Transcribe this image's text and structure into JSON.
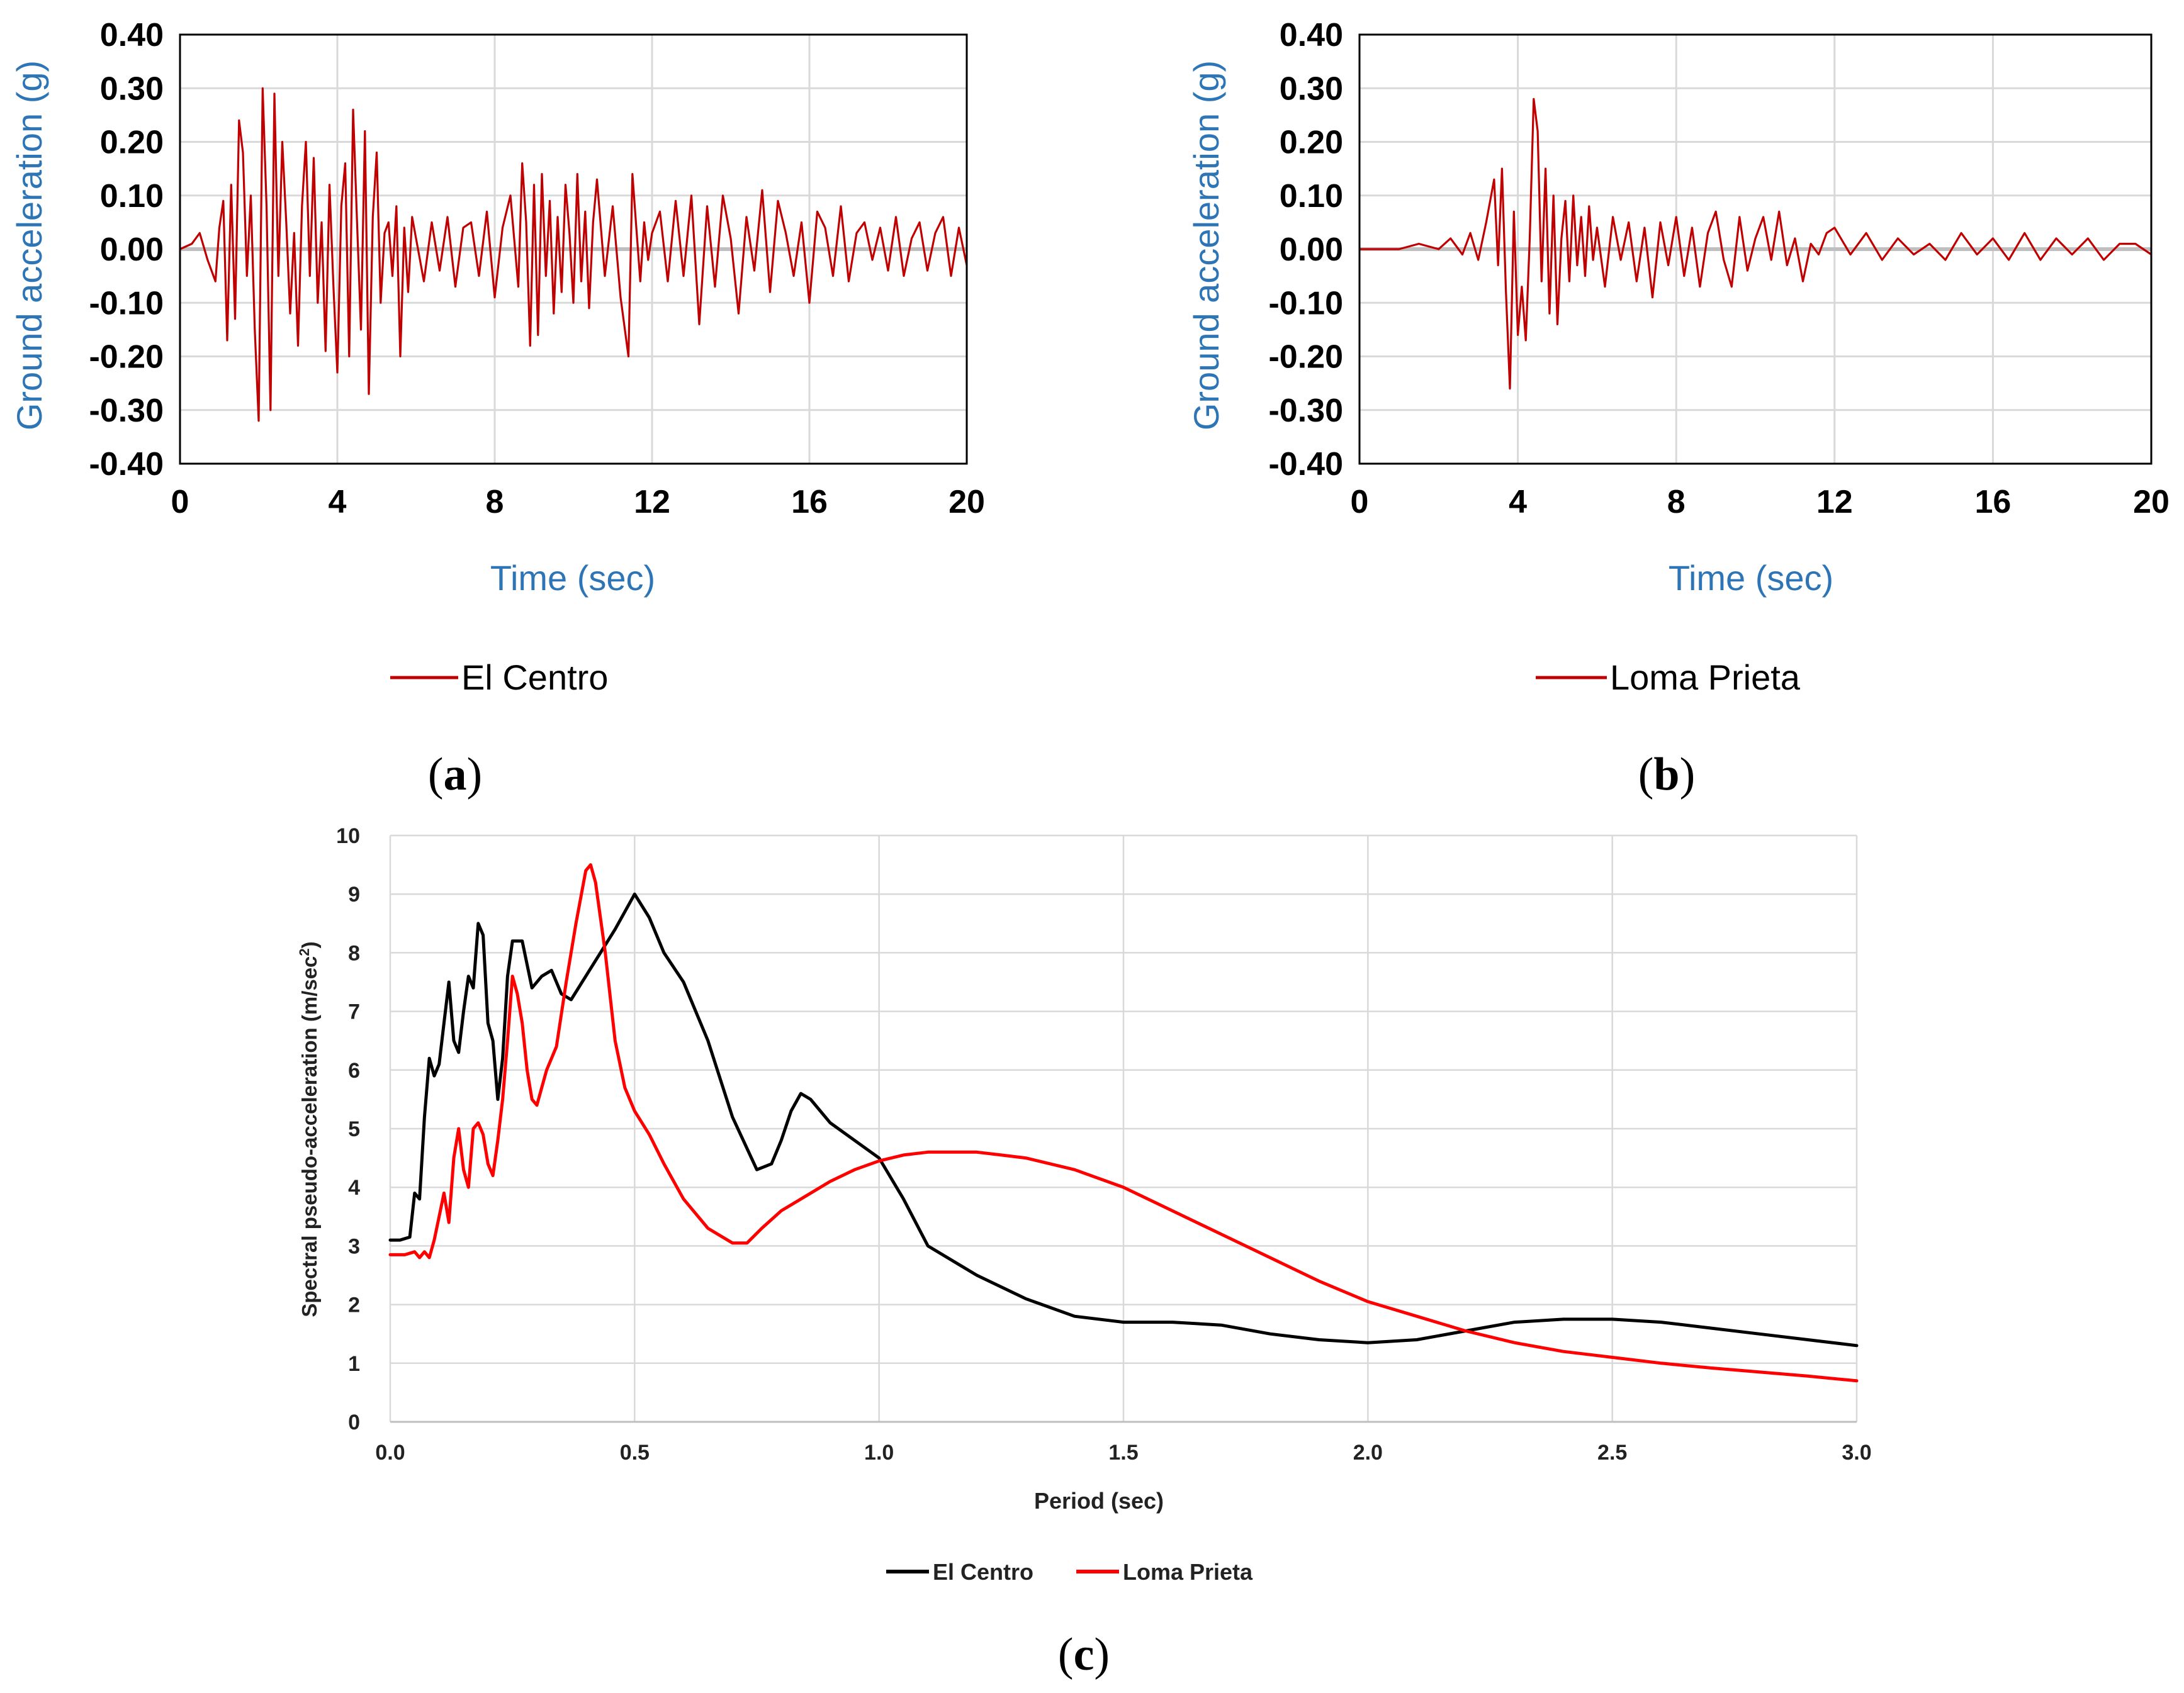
{
  "chart_data": [
    {
      "type": "line",
      "panel": "a",
      "panel_label_text": "a",
      "xlabel": "Time (sec)",
      "ylabel": "Ground acceleration (g)",
      "xlim": [
        0,
        20
      ],
      "ylim": [
        -0.4,
        0.4
      ],
      "x_ticks": [
        "0",
        "4",
        "8",
        "12",
        "16",
        "20"
      ],
      "y_ticks": [
        "0.40",
        "0.30",
        "0.20",
        "0.10",
        "0.00",
        "-0.10",
        "-0.20",
        "-0.30",
        "-0.40"
      ],
      "color": "#C00000",
      "series": [
        {
          "name": "El Centro",
          "x": [
            0,
            0.3,
            0.5,
            0.7,
            0.9,
            1.0,
            1.1,
            1.2,
            1.3,
            1.4,
            1.5,
            1.6,
            1.7,
            1.8,
            1.9,
            2.0,
            2.1,
            2.2,
            2.3,
            2.4,
            2.5,
            2.6,
            2.7,
            2.8,
            2.9,
            3.0,
            3.1,
            3.2,
            3.3,
            3.4,
            3.5,
            3.6,
            3.7,
            3.8,
            3.9,
            4.0,
            4.1,
            4.2,
            4.3,
            4.4,
            4.5,
            4.6,
            4.7,
            4.8,
            4.9,
            5.0,
            5.1,
            5.2,
            5.3,
            5.4,
            5.5,
            5.6,
            5.7,
            5.8,
            5.9,
            6.0,
            6.2,
            6.4,
            6.6,
            6.8,
            7.0,
            7.2,
            7.4,
            7.6,
            7.8,
            8.0,
            8.2,
            8.4,
            8.6,
            8.7,
            8.8,
            8.9,
            9.0,
            9.1,
            9.2,
            9.3,
            9.4,
            9.5,
            9.6,
            9.7,
            9.8,
            9.9,
            10.0,
            10.1,
            10.2,
            10.3,
            10.4,
            10.5,
            10.6,
            10.8,
            11.0,
            11.2,
            11.4,
            11.5,
            11.6,
            11.7,
            11.8,
            11.9,
            12.0,
            12.2,
            12.4,
            12.6,
            12.8,
            13.0,
            13.2,
            13.4,
            13.6,
            13.8,
            14.0,
            14.2,
            14.4,
            14.6,
            14.8,
            15.0,
            15.2,
            15.4,
            15.6,
            15.8,
            16.0,
            16.2,
            16.4,
            16.6,
            16.8,
            17.0,
            17.2,
            17.4,
            17.6,
            17.8,
            18.0,
            18.2,
            18.4,
            18.6,
            18.8,
            19.0,
            19.2,
            19.4,
            19.6,
            19.8,
            20.0
          ],
          "values": [
            0,
            0.01,
            0.03,
            -0.02,
            -0.06,
            0.04,
            0.09,
            -0.17,
            0.12,
            -0.13,
            0.24,
            0.18,
            -0.05,
            0.1,
            -0.15,
            -0.32,
            0.3,
            0.08,
            -0.3,
            0.29,
            -0.05,
            0.2,
            0.05,
            -0.12,
            0.03,
            -0.18,
            0.08,
            0.2,
            -0.05,
            0.17,
            -0.1,
            0.05,
            -0.19,
            0.12,
            -0.07,
            -0.23,
            0.08,
            0.16,
            -0.2,
            0.26,
            0.05,
            -0.15,
            0.22,
            -0.27,
            0.06,
            0.18,
            -0.1,
            0.03,
            0.05,
            -0.05,
            0.08,
            -0.2,
            0.04,
            -0.08,
            0.06,
            0.02,
            -0.06,
            0.05,
            -0.04,
            0.06,
            -0.07,
            0.04,
            0.05,
            -0.05,
            0.07,
            -0.09,
            0.04,
            0.1,
            -0.07,
            0.16,
            0.05,
            -0.18,
            0.12,
            -0.16,
            0.14,
            -0.05,
            0.09,
            -0.12,
            0.06,
            -0.08,
            0.12,
            0.03,
            -0.1,
            0.14,
            -0.06,
            0.07,
            -0.11,
            0.05,
            0.13,
            -0.05,
            0.08,
            -0.09,
            -0.2,
            0.14,
            0.04,
            -0.06,
            0.05,
            -0.02,
            0.03,
            0.07,
            -0.06,
            0.09,
            -0.05,
            0.1,
            -0.14,
            0.08,
            -0.07,
            0.1,
            0.02,
            -0.12,
            0.06,
            -0.04,
            0.11,
            -0.08,
            0.09,
            0.03,
            -0.05,
            0.05,
            -0.1,
            0.07,
            0.04,
            -0.05,
            0.08,
            -0.06,
            0.03,
            0.05,
            -0.02,
            0.04,
            -0.04,
            0.06,
            -0.05,
            0.02,
            0.05,
            -0.04,
            0.03,
            0.06,
            -0.05,
            0.04,
            -0.03
          ]
        }
      ]
    },
    {
      "type": "line",
      "panel": "b",
      "panel_label_text": "b",
      "xlabel": "Time (sec)",
      "ylabel": "Ground acceleration (g)",
      "xlim": [
        0,
        20
      ],
      "ylim": [
        -0.4,
        0.4
      ],
      "x_ticks": [
        "0",
        "4",
        "8",
        "12",
        "16",
        "20"
      ],
      "y_ticks": [
        "0.40",
        "0.30",
        "0.20",
        "0.10",
        "0.00",
        "-0.10",
        "-0.20",
        "-0.30",
        "-0.40"
      ],
      "color": "#C00000",
      "series": [
        {
          "name": "Loma Prieta",
          "x": [
            0,
            0.5,
            1.0,
            1.5,
            2.0,
            2.3,
            2.6,
            2.8,
            3.0,
            3.2,
            3.4,
            3.5,
            3.6,
            3.7,
            3.8,
            3.9,
            4.0,
            4.1,
            4.2,
            4.3,
            4.4,
            4.5,
            4.6,
            4.7,
            4.8,
            4.9,
            5.0,
            5.1,
            5.2,
            5.3,
            5.4,
            5.5,
            5.6,
            5.7,
            5.8,
            5.9,
            6.0,
            6.2,
            6.4,
            6.6,
            6.8,
            7.0,
            7.2,
            7.4,
            7.6,
            7.8,
            8.0,
            8.2,
            8.4,
            8.6,
            8.8,
            9.0,
            9.2,
            9.4,
            9.6,
            9.8,
            10.0,
            10.2,
            10.4,
            10.6,
            10.8,
            11.0,
            11.2,
            11.4,
            11.6,
            11.8,
            12.0,
            12.4,
            12.8,
            13.2,
            13.6,
            14.0,
            14.4,
            14.8,
            15.2,
            15.6,
            16.0,
            16.4,
            16.8,
            17.2,
            17.6,
            18.0,
            18.4,
            18.8,
            19.2,
            19.6,
            20.0
          ],
          "values": [
            0,
            0,
            0,
            0.01,
            0.0,
            0.02,
            -0.01,
            0.03,
            -0.02,
            0.05,
            0.13,
            -0.03,
            0.15,
            -0.08,
            -0.26,
            0.07,
            -0.16,
            -0.07,
            -0.17,
            0.02,
            0.28,
            0.22,
            -0.06,
            0.15,
            -0.12,
            0.1,
            -0.14,
            0.02,
            0.09,
            -0.06,
            0.1,
            -0.03,
            0.06,
            -0.05,
            0.08,
            -0.02,
            0.04,
            -0.07,
            0.06,
            -0.02,
            0.05,
            -0.06,
            0.04,
            -0.09,
            0.05,
            -0.03,
            0.06,
            -0.05,
            0.04,
            -0.07,
            0.03,
            0.07,
            -0.02,
            -0.07,
            0.06,
            -0.04,
            0.02,
            0.06,
            -0.02,
            0.07,
            -0.03,
            0.02,
            -0.06,
            0.01,
            -0.01,
            0.03,
            0.04,
            -0.01,
            0.03,
            -0.02,
            0.02,
            -0.01,
            0.01,
            -0.02,
            0.03,
            -0.01,
            0.02,
            -0.02,
            0.03,
            -0.02,
            0.02,
            -0.01,
            0.02,
            -0.02,
            0.01,
            0.01,
            -0.01
          ]
        }
      ]
    },
    {
      "type": "line",
      "panel": "c",
      "panel_label_text": "c",
      "xlabel": "Period (sec)",
      "ylabel": "Spectral pseudo-acceleration (m/sec",
      "ylabel_sup": "2",
      "ylabel_end": ")",
      "xlim": [
        0,
        3
      ],
      "ylim": [
        0,
        10
      ],
      "x_ticks": [
        "0.0",
        "0.5",
        "1.0",
        "1.5",
        "2.0",
        "2.5",
        "3.0"
      ],
      "y_ticks": [
        "10",
        "9",
        "8",
        "7",
        "6",
        "5",
        "4",
        "3",
        "2",
        "1",
        "0"
      ],
      "series": [
        {
          "name": "El Centro",
          "color": "#000000",
          "x": [
            0,
            0.02,
            0.04,
            0.05,
            0.06,
            0.07,
            0.08,
            0.09,
            0.1,
            0.11,
            0.12,
            0.13,
            0.14,
            0.15,
            0.16,
            0.17,
            0.18,
            0.19,
            0.2,
            0.21,
            0.22,
            0.23,
            0.24,
            0.25,
            0.27,
            0.29,
            0.31,
            0.33,
            0.35,
            0.37,
            0.4,
            0.43,
            0.46,
            0.5,
            0.53,
            0.56,
            0.6,
            0.65,
            0.7,
            0.75,
            0.78,
            0.8,
            0.82,
            0.84,
            0.86,
            0.9,
            0.95,
            1.0,
            1.05,
            1.1,
            1.2,
            1.3,
            1.4,
            1.5,
            1.6,
            1.7,
            1.8,
            1.9,
            2.0,
            2.1,
            2.2,
            2.3,
            2.4,
            2.5,
            2.6,
            2.7,
            2.8,
            2.9,
            3.0
          ],
          "values": [
            3.1,
            3.1,
            3.15,
            3.9,
            3.8,
            5.2,
            6.2,
            5.9,
            6.1,
            6.8,
            7.5,
            6.5,
            6.3,
            7.0,
            7.6,
            7.4,
            8.5,
            8.3,
            6.8,
            6.5,
            5.5,
            6.2,
            7.6,
            8.2,
            8.2,
            7.4,
            7.6,
            7.7,
            7.3,
            7.2,
            7.6,
            8.0,
            8.4,
            9.0,
            8.6,
            8.0,
            7.5,
            6.5,
            5.2,
            4.3,
            4.4,
            4.8,
            5.3,
            5.6,
            5.5,
            5.1,
            4.8,
            4.5,
            3.8,
            3.0,
            2.5,
            2.1,
            1.8,
            1.7,
            1.7,
            1.65,
            1.5,
            1.4,
            1.35,
            1.4,
            1.55,
            1.7,
            1.75,
            1.75,
            1.7,
            1.6,
            1.5,
            1.4,
            1.3
          ]
        },
        {
          "name": "Loma Prieta",
          "color": "#FF0000",
          "x": [
            0,
            0.03,
            0.05,
            0.06,
            0.07,
            0.08,
            0.09,
            0.1,
            0.11,
            0.12,
            0.13,
            0.14,
            0.15,
            0.16,
            0.17,
            0.18,
            0.19,
            0.2,
            0.21,
            0.22,
            0.23,
            0.24,
            0.25,
            0.26,
            0.27,
            0.28,
            0.29,
            0.3,
            0.32,
            0.34,
            0.36,
            0.38,
            0.4,
            0.41,
            0.42,
            0.44,
            0.46,
            0.48,
            0.5,
            0.53,
            0.56,
            0.6,
            0.65,
            0.7,
            0.73,
            0.76,
            0.8,
            0.85,
            0.9,
            0.95,
            1.0,
            1.05,
            1.1,
            1.15,
            1.2,
            1.25,
            1.3,
            1.4,
            1.5,
            1.6,
            1.7,
            1.8,
            1.9,
            2.0,
            2.1,
            2.2,
            2.3,
            2.4,
            2.5,
            2.6,
            2.7,
            2.8,
            2.9,
            3.0
          ],
          "values": [
            2.85,
            2.85,
            2.9,
            2.8,
            2.9,
            2.8,
            3.1,
            3.5,
            3.9,
            3.4,
            4.5,
            5.0,
            4.3,
            4.0,
            5.0,
            5.1,
            4.9,
            4.4,
            4.2,
            4.8,
            5.5,
            6.5,
            7.6,
            7.3,
            6.8,
            6.0,
            5.5,
            5.4,
            6.0,
            6.4,
            7.5,
            8.5,
            9.4,
            9.5,
            9.2,
            8.0,
            6.5,
            5.7,
            5.3,
            4.9,
            4.4,
            3.8,
            3.3,
            3.05,
            3.05,
            3.3,
            3.6,
            3.85,
            4.1,
            4.3,
            4.45,
            4.55,
            4.6,
            4.6,
            4.6,
            4.55,
            4.5,
            4.3,
            4.0,
            3.6,
            3.2,
            2.8,
            2.4,
            2.05,
            1.8,
            1.55,
            1.35,
            1.2,
            1.1,
            1.0,
            0.92,
            0.85,
            0.78,
            0.7
          ]
        }
      ]
    }
  ]
}
